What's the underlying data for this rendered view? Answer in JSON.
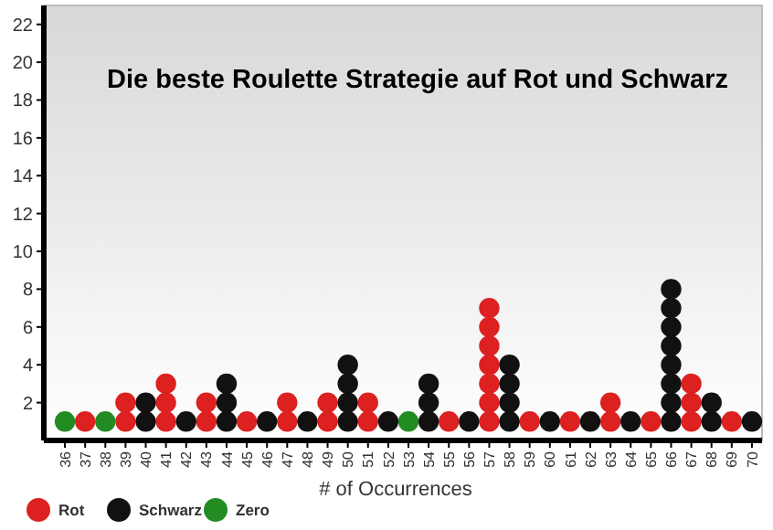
{
  "chart_data": {
    "type": "scatter",
    "title": "Die beste Roulette Strategie auf Rot und Schwarz",
    "xlabel": "# of Occurrences",
    "categories": [
      "36",
      "37",
      "38",
      "39",
      "40",
      "41",
      "42",
      "43",
      "44",
      "45",
      "46",
      "47",
      "48",
      "49",
      "50",
      "51",
      "52",
      "53",
      "54",
      "55",
      "56",
      "57",
      "58",
      "59",
      "60",
      "61",
      "62",
      "63",
      "64",
      "65",
      "66",
      "67",
      "68",
      "69",
      "70"
    ],
    "ylim": [
      0,
      23
    ],
    "yticks": [
      2,
      4,
      6,
      8,
      10,
      12,
      14,
      16,
      18,
      20,
      22
    ],
    "grid": false,
    "legend": "bottom left",
    "marker": "circle",
    "series": [
      {
        "name": "Rot",
        "color": "#dd2020",
        "x": [
          "37",
          "39",
          "39",
          "41",
          "41",
          "41",
          "43",
          "43",
          "45",
          "47",
          "47",
          "49",
          "49",
          "51",
          "51",
          "55",
          "57",
          "57",
          "57",
          "57",
          "57",
          "57",
          "57",
          "59",
          "61",
          "63",
          "63",
          "65",
          "67",
          "67",
          "67",
          "69"
        ],
        "values": [
          1,
          1,
          2,
          1,
          2,
          3,
          1,
          2,
          1,
          1,
          2,
          1,
          2,
          1,
          2,
          1,
          1,
          2,
          3,
          4,
          5,
          6,
          7,
          1,
          1,
          1,
          2,
          1,
          1,
          2,
          3,
          1
        ]
      },
      {
        "name": "Schwarz",
        "color": "#111111",
        "x": [
          "40",
          "40",
          "42",
          "44",
          "44",
          "44",
          "46",
          "48",
          "50",
          "50",
          "50",
          "50",
          "52",
          "54",
          "54",
          "54",
          "56",
          "58",
          "58",
          "58",
          "58",
          "60",
          "62",
          "64",
          "66",
          "66",
          "66",
          "66",
          "66",
          "66",
          "66",
          "66",
          "68",
          "68",
          "70"
        ],
        "values": [
          1,
          2,
          1,
          1,
          2,
          3,
          1,
          1,
          1,
          2,
          3,
          4,
          1,
          1,
          2,
          3,
          1,
          1,
          2,
          3,
          4,
          1,
          1,
          1,
          1,
          2,
          3,
          4,
          5,
          6,
          7,
          8,
          1,
          2,
          1
        ]
      },
      {
        "name": "Zero",
        "color": "#228b22",
        "x": [
          "36",
          "38",
          "53"
        ],
        "values": [
          1,
          1,
          1
        ]
      }
    ]
  }
}
